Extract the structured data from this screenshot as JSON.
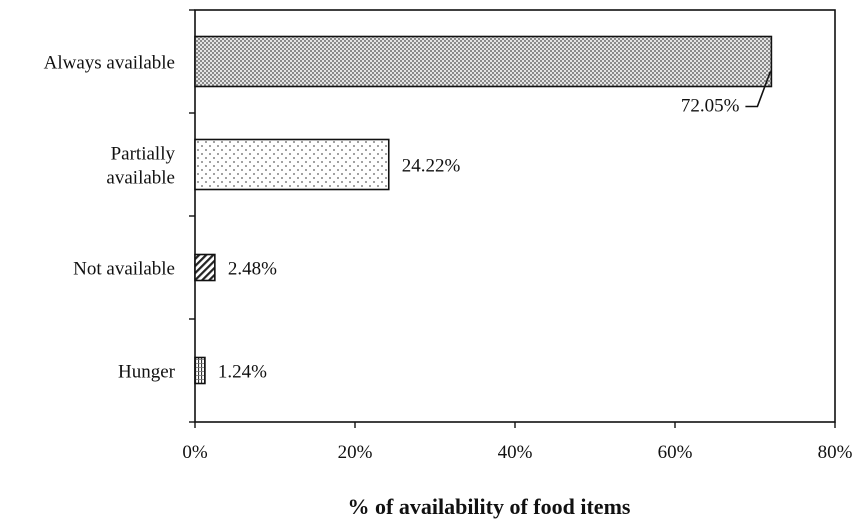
{
  "chart_data": {
    "type": "bar",
    "orientation": "horizontal",
    "categories": [
      "Always available",
      "Partially available",
      "Not available",
      "Hunger"
    ],
    "category_label_lines": [
      [
        "Always available"
      ],
      [
        "Partially",
        "available"
      ],
      [
        "Not available"
      ],
      [
        "Hunger"
      ]
    ],
    "values": [
      72.05,
      24.22,
      2.48,
      1.24
    ],
    "data_labels": [
      "72.05%",
      "24.22%",
      "2.48%",
      "1.24%"
    ],
    "bar_patterns": [
      "dense-dots",
      "sparse-dots",
      "diagonal-hatch",
      "vertical-lines"
    ],
    "title": "",
    "xlabel": "% of availability of food items",
    "ylabel": "",
    "xlim": [
      0,
      80
    ],
    "x_ticks": [
      0,
      20,
      40,
      60,
      80
    ],
    "x_tick_labels": [
      "0%",
      "20%",
      "40%",
      "60%",
      "80%"
    ],
    "grid": false,
    "legend": "none",
    "first_label_callout": true,
    "colors": {
      "bar_fill": "#ffffff",
      "bar_stroke": "#111111",
      "pattern": "#333333",
      "text": "#111111"
    }
  }
}
